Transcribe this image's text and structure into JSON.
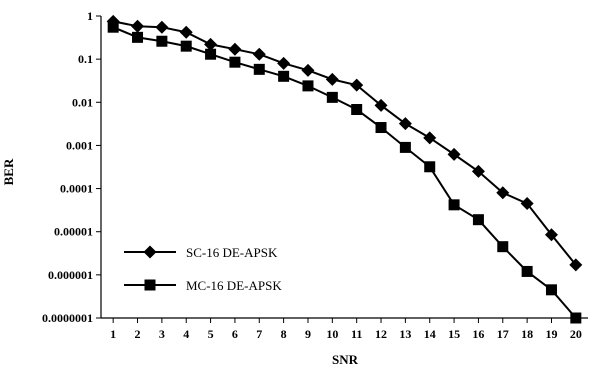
{
  "chart_data": {
    "type": "line",
    "title": "",
    "xlabel": "SNR",
    "ylabel": "BER",
    "x": [
      1,
      2,
      3,
      4,
      5,
      6,
      7,
      8,
      9,
      10,
      11,
      12,
      13,
      14,
      15,
      16,
      17,
      18,
      19,
      20
    ],
    "xlim": [
      0.5,
      20.5
    ],
    "ylim": [
      1e-07,
      1
    ],
    "yscale": "log",
    "yticks": [
      1,
      0.1,
      0.01,
      0.001,
      0.0001,
      1e-05,
      1e-06,
      1e-07
    ],
    "ytick_labels": [
      "1",
      "0.1",
      "0.01",
      "0.001",
      "0.0001",
      "0.00001",
      "0.000001",
      "0.0000001"
    ],
    "xtick_labels": [
      "1",
      "2",
      "3",
      "4",
      "5",
      "6",
      "7",
      "8",
      "9",
      "10",
      "11",
      "12",
      "13",
      "14",
      "15",
      "16",
      "17",
      "18",
      "19",
      "20"
    ],
    "grid": false,
    "legend_position": "bottom-left",
    "series": [
      {
        "name": "SC-16 DE-APSK",
        "marker": "diamond",
        "color": "#000000",
        "values": [
          0.75,
          0.58,
          0.55,
          0.42,
          0.22,
          0.17,
          0.13,
          0.08,
          0.055,
          0.034,
          0.025,
          0.0085,
          0.0032,
          0.0015,
          0.00062,
          0.00025,
          8e-05,
          4.5e-05,
          8.5e-06,
          1.7e-06
        ]
      },
      {
        "name": "MC-16 DE-APSK",
        "marker": "square",
        "color": "#000000",
        "values": [
          0.55,
          0.32,
          0.26,
          0.2,
          0.13,
          0.085,
          0.058,
          0.04,
          0.024,
          0.013,
          0.0068,
          0.0026,
          0.0009,
          0.00032,
          4.2e-05,
          1.9e-05,
          4.5e-06,
          1.2e-06,
          4.5e-07,
          1e-07
        ]
      }
    ]
  }
}
